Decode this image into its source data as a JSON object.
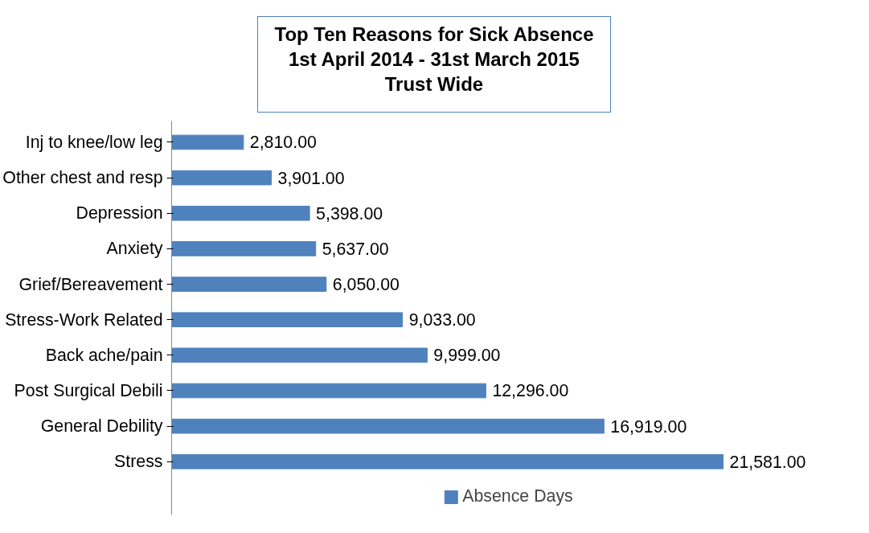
{
  "chart_data": {
    "type": "bar",
    "orientation": "horizontal",
    "title": "Top Ten Reasons for Sick Absence\n1st April 2014 - 31st March 2015\nTrust Wide",
    "categories": [
      "Inj to knee/low leg",
      "Other chest and resp",
      "Depression",
      "Anxiety",
      "Grief/Bereavement",
      "Stress-Work Related",
      "Back ache/pain",
      "Post Surgical Debili",
      "General Debility",
      "Stress"
    ],
    "series": [
      {
        "name": "Absence Days",
        "color": "#4f81bd",
        "values": [
          2810,
          3901,
          5398,
          5637,
          6050,
          9033,
          9999,
          12296,
          16919,
          21581
        ],
        "value_labels": [
          "2,810.00",
          "3,901.00",
          "5,398.00",
          "5,637.00",
          "6,050.00",
          "9,033.00",
          "9,999.00",
          "12,296.00",
          "16,919.00",
          "21,581.00"
        ]
      }
    ],
    "legend": "bottom",
    "grid": false
  }
}
